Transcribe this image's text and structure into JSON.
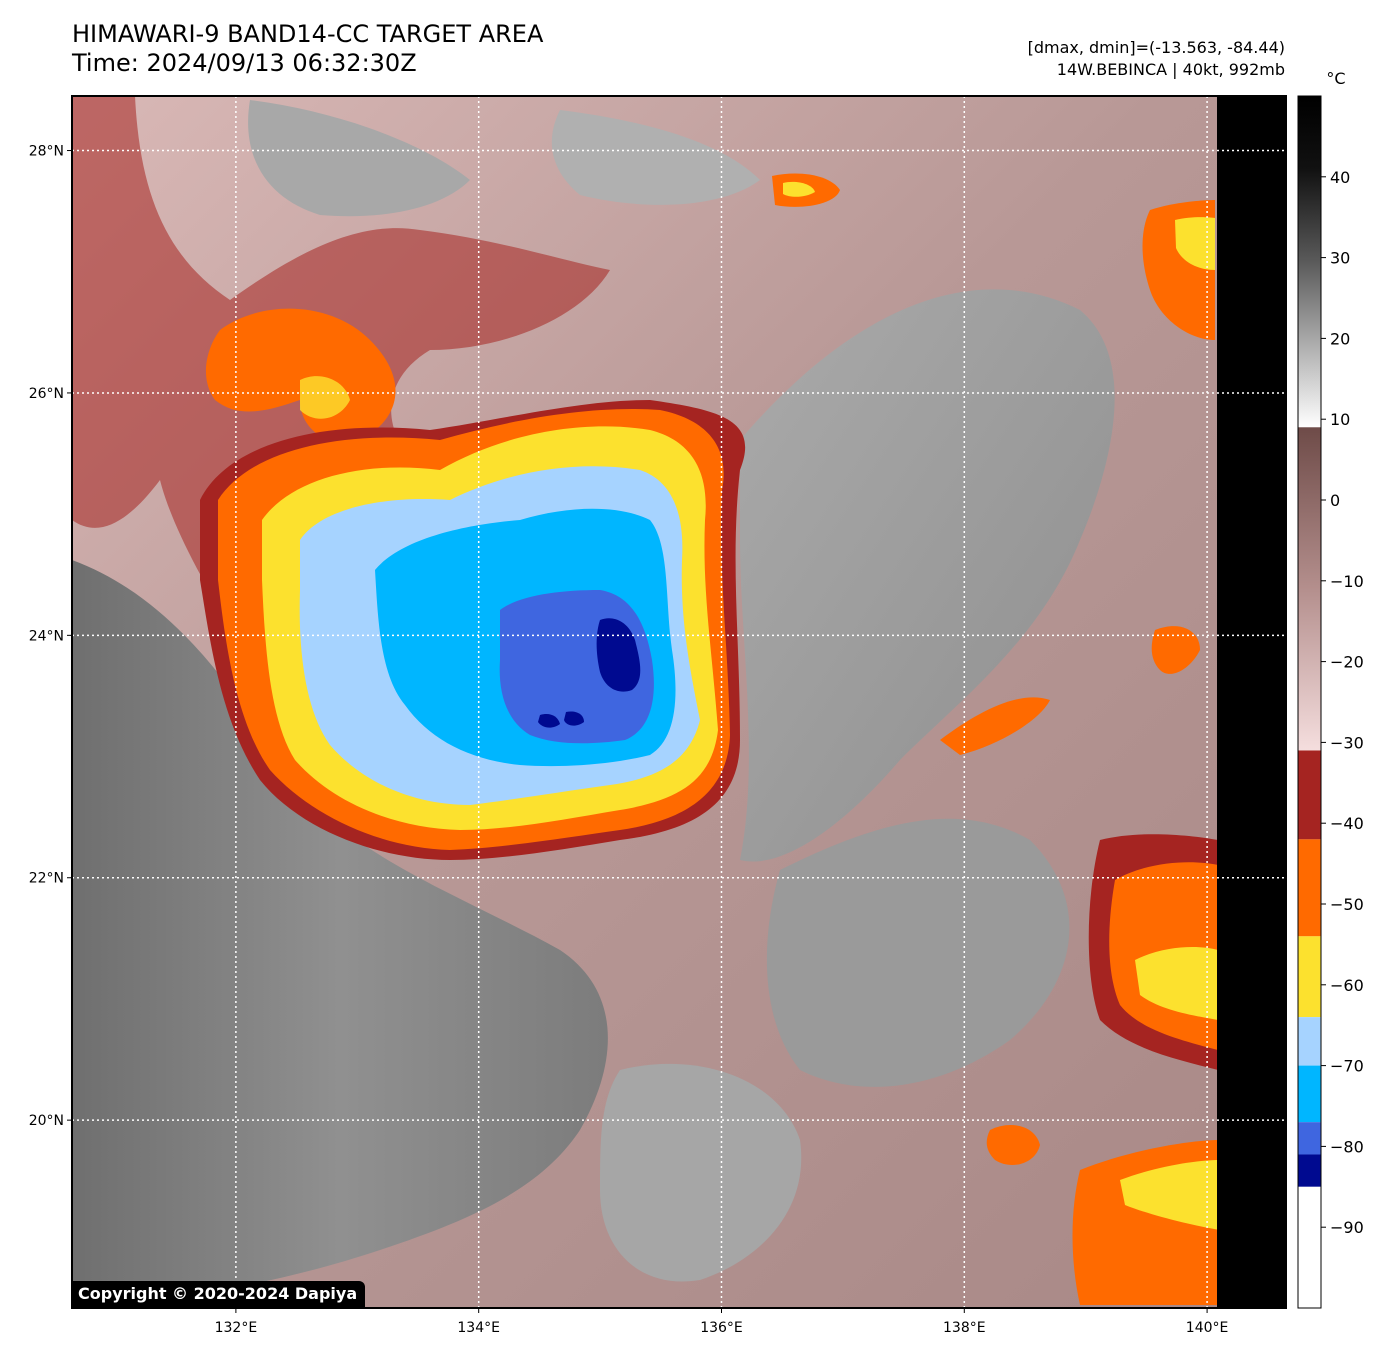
{
  "header": {
    "title_line1": "HIMAWARI-9 BAND14-CC TARGET AREA",
    "title_line2": "Time: 2024/09/13 06:32:30Z",
    "range_text": "[dmax, dmin]=(-13.563, -84.44)",
    "storm_text": "14W.BEBINCA | 40kt, 992mb"
  },
  "map": {
    "lat_labels": [
      "28°N",
      "26°N",
      "24°N",
      "22°N",
      "20°N"
    ],
    "lat_values": [
      28,
      26,
      24,
      22,
      20
    ],
    "lon_labels": [
      "132°E",
      "134°E",
      "136°E",
      "138°E",
      "140°E"
    ],
    "lon_values": [
      132,
      134,
      136,
      138,
      140
    ],
    "lat_range": [
      18.45,
      28.45
    ],
    "lon_range": [
      130.65,
      140.65
    ],
    "storm_center_lat": 24.0,
    "storm_center_lon": 135.1
  },
  "colorbar": {
    "unit": "°C",
    "tick_labels": [
      "40",
      "30",
      "20",
      "10",
      "0",
      "−10",
      "−20",
      "−30",
      "−40",
      "−50",
      "−60",
      "−70",
      "−80",
      "−90"
    ],
    "tick_values": [
      40,
      30,
      20,
      10,
      0,
      -10,
      -20,
      -30,
      -40,
      -50,
      -60,
      -70,
      -80,
      -90
    ],
    "range": [
      -100,
      50
    ],
    "colors": {
      "warm_top": "#000000",
      "warm_mid": "#5a5a5a",
      "warm_low": "#ffffff",
      "brown_top": "#6e4b48",
      "brown_low": "#f5dede",
      "dark_red": "#a52421",
      "orange": "#ff6a00",
      "yellow": "#fce12e",
      "light_blue": "#a6d3ff",
      "cyan": "#00b6ff",
      "royal_blue": "#3f66e0",
      "navy": "#000a90",
      "coldest": "#ffffff"
    }
  },
  "copyright": "Copyright © 2020-2024 Dapiya"
}
